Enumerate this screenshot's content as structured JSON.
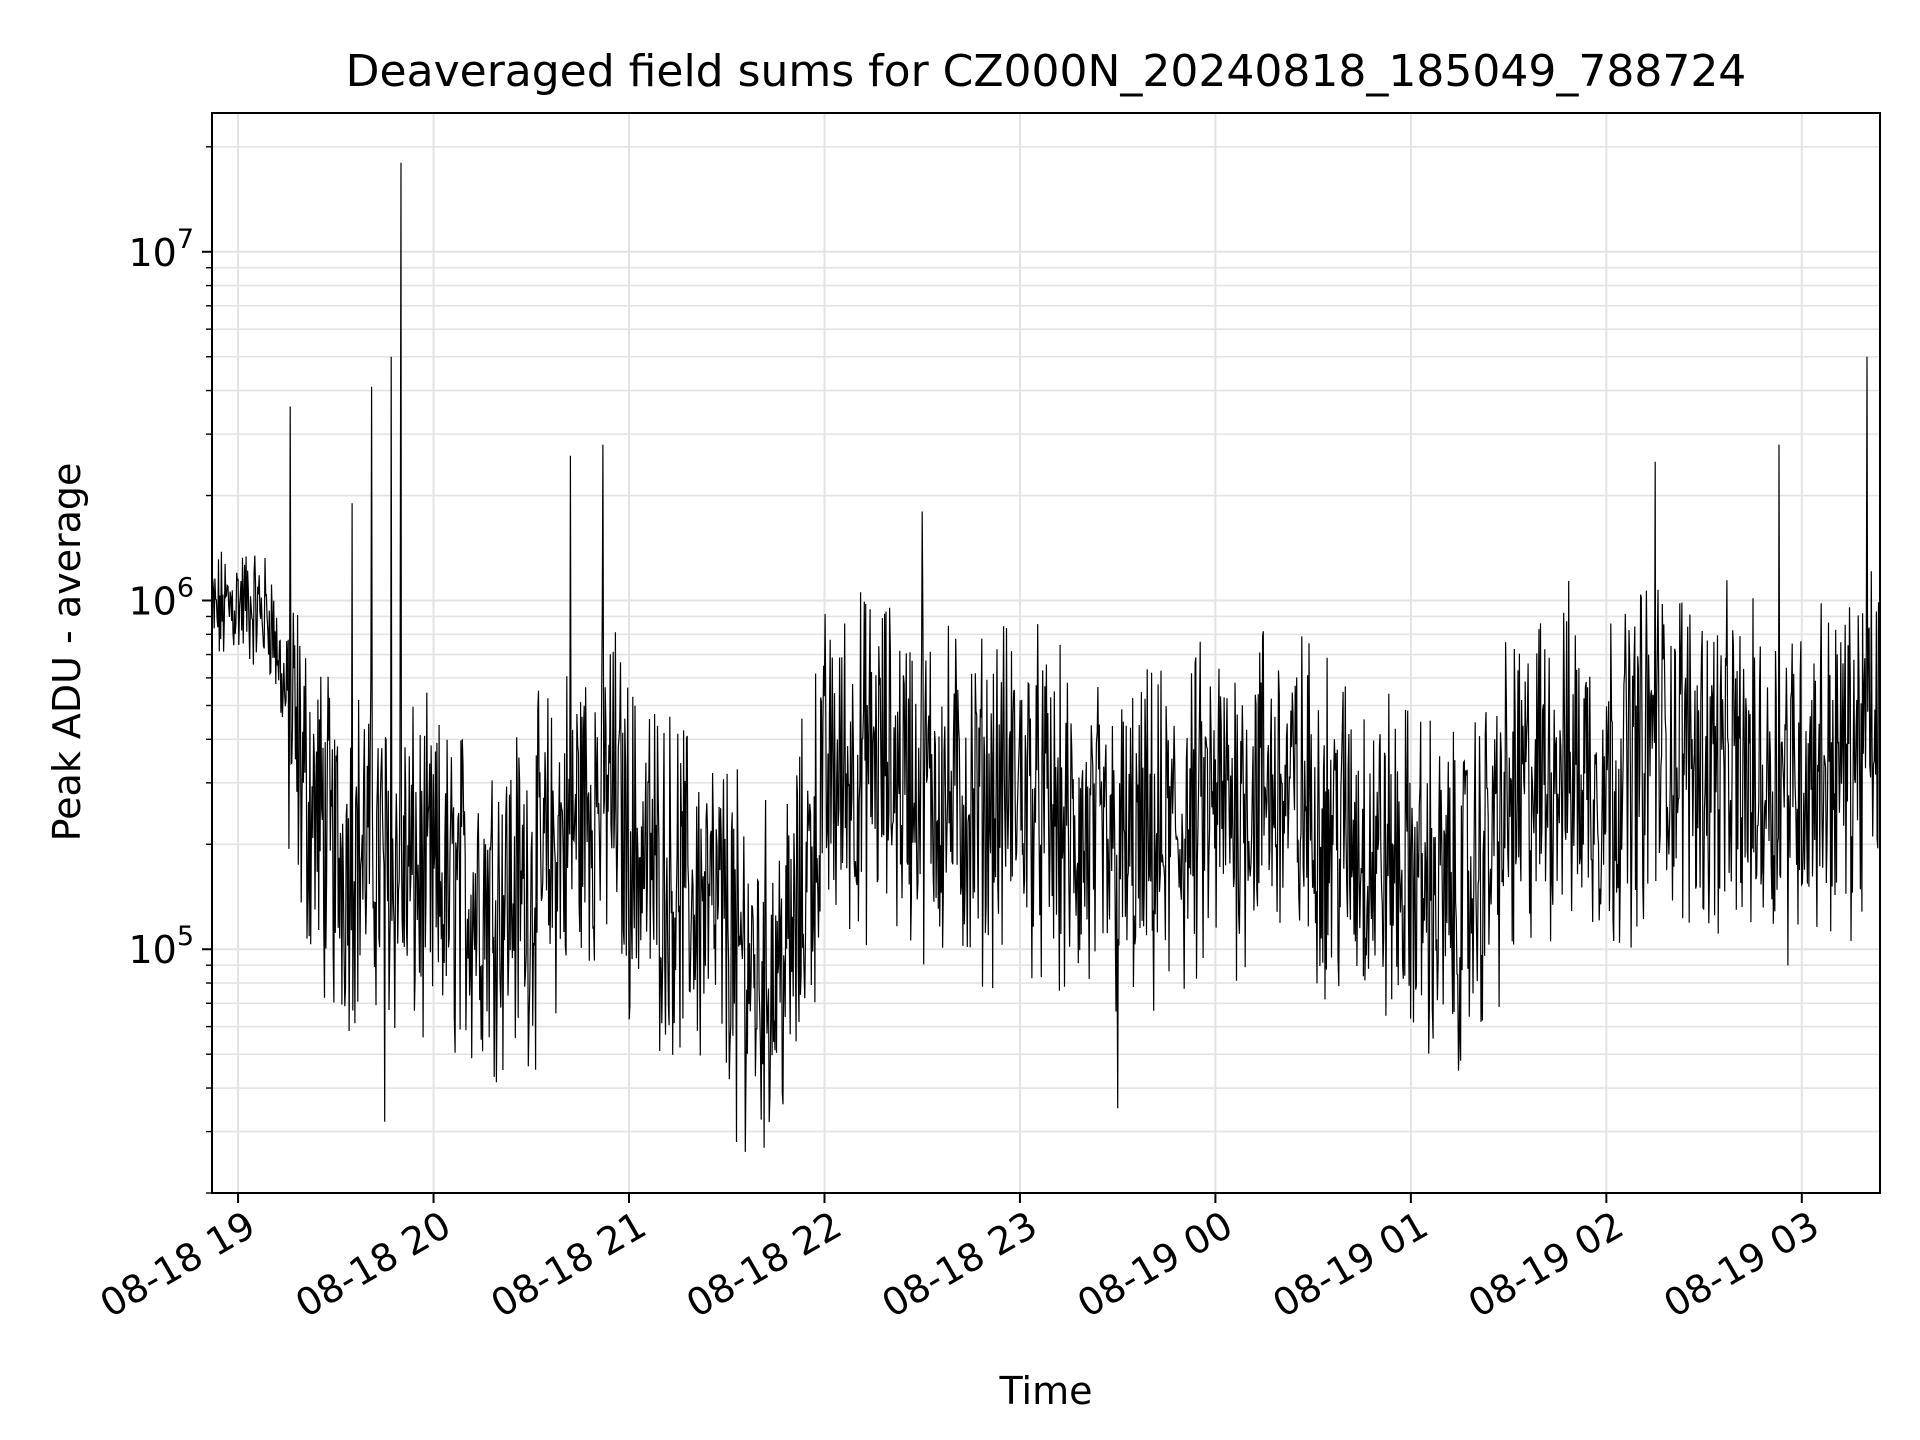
{
  "chart_data": {
    "type": "line",
    "title": "Deaveraged field sums for CZ000N_20240818_185049_788724",
    "xlabel": "Time",
    "ylabel": "Peak ADU - average",
    "yscale": "log",
    "grid": true,
    "xlim": [
      "2024-08-18 18:52",
      "2024-08-19 03:24"
    ],
    "ylim": [
      20000,
      25000000
    ],
    "x_ticks": [
      "08-18 19",
      "08-18 20",
      "08-18 21",
      "08-18 22",
      "08-18 23",
      "08-19 00",
      "08-19 01",
      "08-19 02",
      "08-19 03"
    ],
    "y_ticks": [
      {
        "base": "10",
        "exp": "5",
        "value": 100000
      },
      {
        "base": "10",
        "exp": "6",
        "value": 1000000
      },
      {
        "base": "10",
        "exp": "7",
        "value": 10000000
      }
    ],
    "line_color": "#000000",
    "series": [
      {
        "x": [
          "2024-08-18 18:52",
          "2024-08-18 19:00",
          "2024-08-18 19:10",
          "2024-08-18 19:15",
          "2024-08-18 19:20",
          "2024-08-18 19:30",
          "2024-08-18 19:40",
          "2024-08-18 19:45",
          "2024-08-18 20:00",
          "2024-08-18 20:15",
          "2024-08-18 20:30",
          "2024-08-18 20:45",
          "2024-08-18 20:55",
          "2024-08-18 21:00",
          "2024-08-18 21:15",
          "2024-08-18 21:30",
          "2024-08-18 21:40",
          "2024-08-18 21:50",
          "2024-08-18 22:00",
          "2024-08-18 22:15",
          "2024-08-18 22:30",
          "2024-08-18 22:45",
          "2024-08-18 23:00",
          "2024-08-18 23:15",
          "2024-08-18 23:30",
          "2024-08-18 23:45",
          "2024-08-19 00:00",
          "2024-08-19 00:15",
          "2024-08-19 00:30",
          "2024-08-19 00:45",
          "2024-08-19 01:00",
          "2024-08-19 01:15",
          "2024-08-19 01:30",
          "2024-08-19 01:45",
          "2024-08-19 02:00",
          "2024-08-19 02:15",
          "2024-08-19 02:30",
          "2024-08-19 02:45",
          "2024-08-19 03:00",
          "2024-08-19 03:15",
          "2024-08-19 03:24"
        ],
        "y": [
          900000,
          1000000,
          900000,
          500000,
          300000,
          180000,
          200000,
          180000,
          150000,
          140000,
          150000,
          250000,
          300000,
          200000,
          150000,
          120000,
          80000,
          100000,
          300000,
          350000,
          300000,
          250000,
          300000,
          200000,
          180000,
          200000,
          250000,
          300000,
          250000,
          200000,
          160000,
          130000,
          250000,
          350000,
          300000,
          400000,
          350000,
          300000,
          320000,
          350000,
          450000
        ],
        "spikes": [
          {
            "x": "2024-08-18 19:16",
            "y": 3600000
          },
          {
            "x": "2024-08-18 19:35",
            "y": 1900000
          },
          {
            "x": "2024-08-18 19:41",
            "y": 4100000
          },
          {
            "x": "2024-08-18 19:47",
            "y": 5000000
          },
          {
            "x": "2024-08-18 19:45",
            "y": 32000
          },
          {
            "x": "2024-08-18 19:50",
            "y": 18000000
          },
          {
            "x": "2024-08-18 20:42",
            "y": 2600000
          },
          {
            "x": "2024-08-18 20:52",
            "y": 2800000
          },
          {
            "x": "2024-08-18 21:33",
            "y": 28000
          },
          {
            "x": "2024-08-18 22:30",
            "y": 1800000
          },
          {
            "x": "2024-08-18 23:30",
            "y": 35000
          },
          {
            "x": "2024-08-19 02:15",
            "y": 2500000
          },
          {
            "x": "2024-08-19 02:53",
            "y": 2800000
          },
          {
            "x": "2024-08-19 03:20",
            "y": 5000000
          }
        ]
      }
    ]
  }
}
